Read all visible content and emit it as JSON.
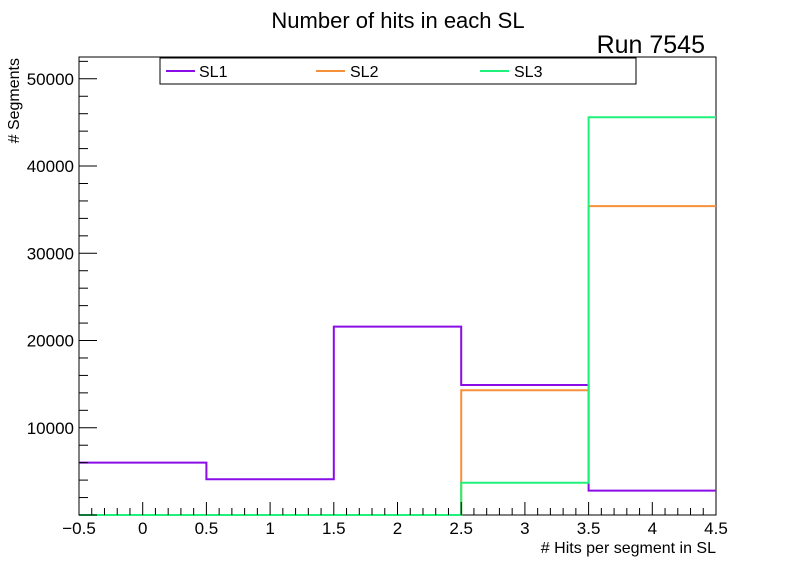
{
  "chart_data": {
    "type": "step",
    "title": "Number of hits in each SL",
    "annotation": "Run 7545",
    "xlabel": "# Hits per segment in SL",
    "ylabel": "# Segments",
    "xlim": [
      -0.5,
      4.5
    ],
    "ylim": [
      0,
      52500
    ],
    "bin_edges": [
      -0.5,
      0.5,
      1.5,
      2.5,
      3.5,
      4.5
    ],
    "x_ticks": [
      {
        "value": -0.5,
        "label": "−0.5"
      },
      {
        "value": 0,
        "label": "0"
      },
      {
        "value": 0.5,
        "label": "0.5"
      },
      {
        "value": 1,
        "label": "1"
      },
      {
        "value": 1.5,
        "label": "1.5"
      },
      {
        "value": 2,
        "label": "2"
      },
      {
        "value": 2.5,
        "label": "2.5"
      },
      {
        "value": 3,
        "label": "3"
      },
      {
        "value": 3.5,
        "label": "3.5"
      },
      {
        "value": 4,
        "label": "4"
      },
      {
        "value": 4.5,
        "label": "4.5"
      }
    ],
    "y_ticks": [
      {
        "value": 10000,
        "label": "10000"
      },
      {
        "value": 20000,
        "label": "20000"
      },
      {
        "value": 30000,
        "label": "30000"
      },
      {
        "value": 40000,
        "label": "40000"
      },
      {
        "value": 50000,
        "label": "50000"
      }
    ],
    "legend_position": "top",
    "series": [
      {
        "name": "SL1",
        "color": "#8a0ce6",
        "values": [
          6000,
          4100,
          21600,
          14900,
          2800
        ]
      },
      {
        "name": "SL2",
        "color": "#f7903a",
        "values": [
          0,
          0,
          0,
          14300,
          35400
        ]
      },
      {
        "name": "SL3",
        "color": "#1ff27a",
        "values": [
          0,
          0,
          0,
          3700,
          45600
        ]
      }
    ]
  }
}
